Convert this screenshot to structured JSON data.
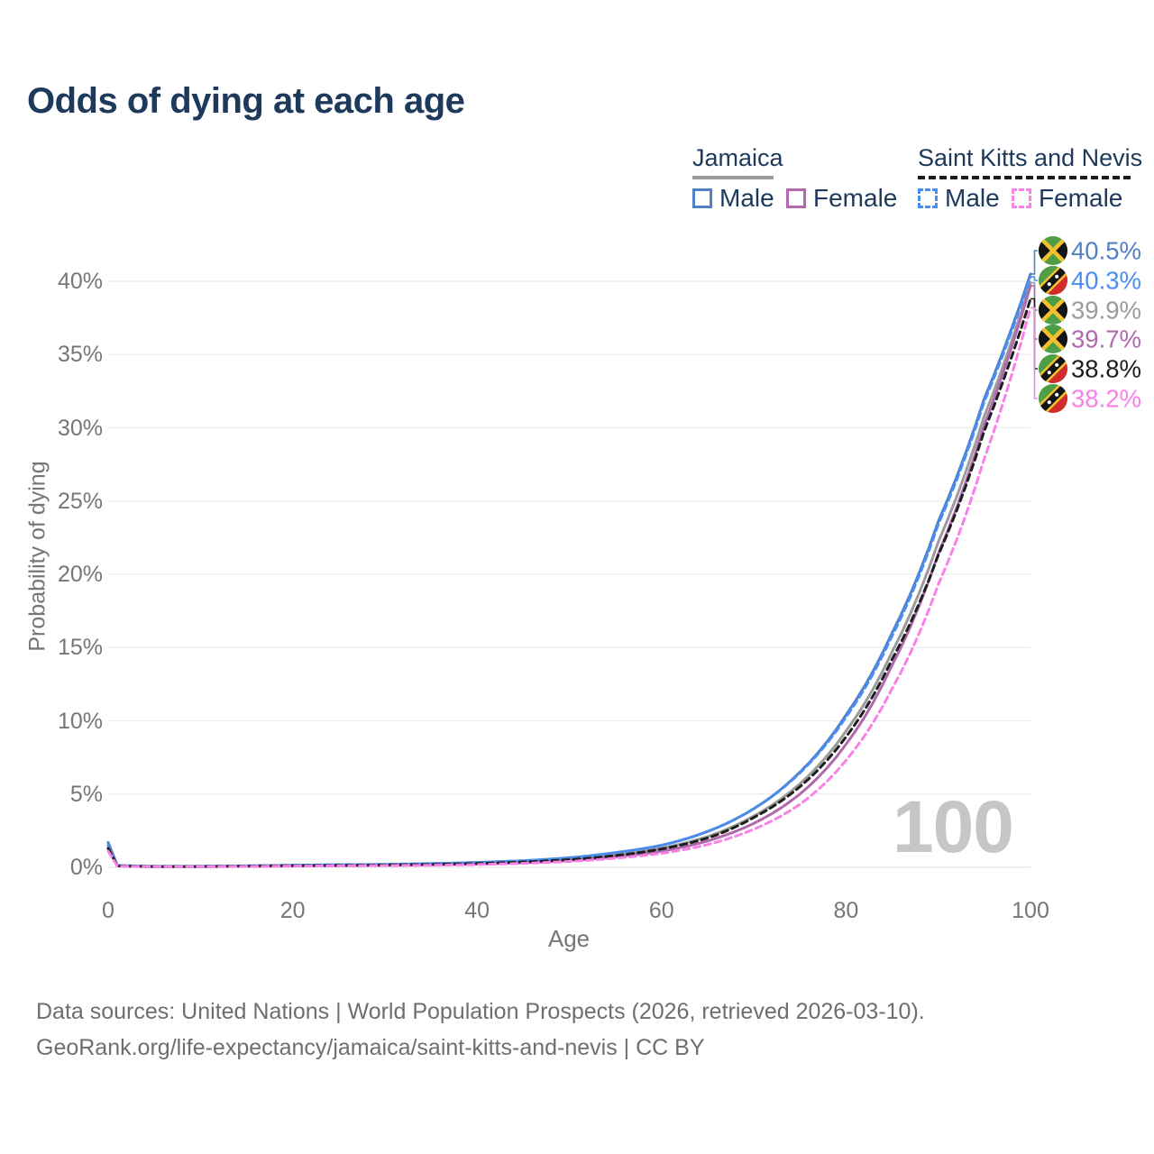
{
  "title": "Odds of dying at each age",
  "legend": {
    "groups": [
      {
        "country": "Jamaica",
        "line_style": "solid",
        "underline_color": "#9a9a9a",
        "items": [
          {
            "label": "Male",
            "color": "#5080c6"
          },
          {
            "label": "Female",
            "color": "#b168ad"
          }
        ]
      },
      {
        "country": "Saint Kitts and Nevis",
        "line_style": "dashed",
        "underline_color": "#1e1e1e",
        "items": [
          {
            "label": "Male",
            "color": "#4a8ef4"
          },
          {
            "label": "Female",
            "color": "#f980e7"
          }
        ]
      }
    ]
  },
  "chart_data": {
    "type": "line",
    "title": "Odds of dying at each age",
    "xlabel": "Age",
    "ylabel": "Probability of dying",
    "xlim": [
      0,
      100
    ],
    "ylim": [
      0,
      42
    ],
    "x_ticks": [
      "0",
      "20",
      "40",
      "60",
      "80",
      "100"
    ],
    "y_ticks": [
      "0%",
      "5%",
      "10%",
      "15%",
      "20%",
      "25%",
      "30%",
      "35%",
      "40%"
    ],
    "grid": "horizontal",
    "legend_position": "top-right",
    "watermark": "100",
    "ages": [
      0,
      1,
      5,
      10,
      15,
      20,
      25,
      30,
      35,
      40,
      45,
      50,
      55,
      60,
      65,
      70,
      75,
      80,
      85,
      90,
      95,
      100
    ],
    "series": [
      {
        "name": "Jamaica Male",
        "flag": "jamaica",
        "color": "#5080c6",
        "dashed": false,
        "end_label": "40.5%",
        "values": [
          1.7,
          0.12,
          0.07,
          0.07,
          0.1,
          0.14,
          0.17,
          0.2,
          0.25,
          0.33,
          0.45,
          0.65,
          1.0,
          1.5,
          2.45,
          4.0,
          6.5,
          10.4,
          16.0,
          23.6,
          32.0,
          40.5
        ]
      },
      {
        "name": "Saint Kitts and Nevis Male",
        "flag": "saint-kitts-and-nevis",
        "color": "#4a8ef4",
        "dashed": true,
        "end_label": "40.3%",
        "values": [
          1.5,
          0.11,
          0.06,
          0.06,
          0.1,
          0.14,
          0.17,
          0.2,
          0.25,
          0.33,
          0.45,
          0.65,
          1.0,
          1.5,
          2.45,
          4.0,
          6.45,
          10.25,
          15.8,
          23.4,
          31.8,
          40.3
        ]
      },
      {
        "name": "Jamaica Both sexes",
        "flag": "jamaica",
        "color": "#9b9b9b",
        "dashed": false,
        "end_label": "39.9%",
        "values": [
          1.5,
          0.1,
          0.06,
          0.06,
          0.08,
          0.11,
          0.14,
          0.17,
          0.21,
          0.28,
          0.38,
          0.55,
          0.85,
          1.3,
          2.1,
          3.5,
          5.7,
          9.3,
          14.7,
          22.2,
          30.8,
          39.9
        ]
      },
      {
        "name": "Jamaica Female",
        "flag": "jamaica",
        "color": "#b168ad",
        "dashed": false,
        "end_label": "39.7%",
        "values": [
          1.3,
          0.09,
          0.05,
          0.05,
          0.07,
          0.09,
          0.11,
          0.13,
          0.17,
          0.22,
          0.31,
          0.46,
          0.72,
          1.1,
          1.8,
          3.0,
          5.0,
          8.4,
          13.8,
          21.4,
          30.2,
          39.7
        ]
      },
      {
        "name": "Saint Kitts and Nevis Both sexes",
        "flag": "saint-kitts-and-nevis",
        "color": "#1e1e1e",
        "dashed": true,
        "end_label": "38.8%",
        "values": [
          1.3,
          0.09,
          0.05,
          0.05,
          0.08,
          0.11,
          0.13,
          0.16,
          0.19,
          0.26,
          0.36,
          0.52,
          0.8,
          1.25,
          2.0,
          3.4,
          5.5,
          8.9,
          14.2,
          21.3,
          29.8,
          38.8
        ]
      },
      {
        "name": "Saint Kitts and Nevis Female",
        "flag": "saint-kitts-and-nevis",
        "color": "#f980e7",
        "dashed": true,
        "end_label": "38.2%",
        "values": [
          1.1,
          0.08,
          0.04,
          0.04,
          0.06,
          0.08,
          0.1,
          0.12,
          0.14,
          0.19,
          0.27,
          0.4,
          0.62,
          0.95,
          1.55,
          2.6,
          4.3,
          7.3,
          12.2,
          19.3,
          27.9,
          38.2
        ]
      }
    ]
  },
  "footer": {
    "line1": "Data sources: United Nations | World Population Prospects (2026, retrieved 2026-03-10).",
    "line2": "GeoRank.org/life-expectancy/jamaica/saint-kitts-and-nevis | CC BY"
  }
}
